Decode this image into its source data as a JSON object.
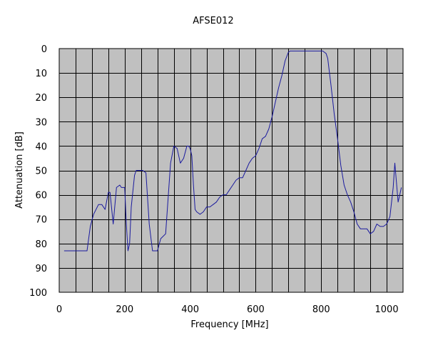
{
  "chart_data": {
    "type": "line",
    "title": "AFSE012",
    "xlabel": "Frequency [MHz]",
    "ylabel": "Attenuation [dB]",
    "xlim": [
      0,
      1050
    ],
    "ylim": [
      0,
      100
    ],
    "y_inverted": true,
    "xticks": [
      0,
      200,
      400,
      600,
      800,
      1000
    ],
    "yticks": [
      0,
      10,
      20,
      30,
      40,
      50,
      60,
      70,
      80,
      90,
      100
    ],
    "x_minor_step": 50,
    "grid": true,
    "legend": "none",
    "colors": {
      "plot_background": "#c0c0c0",
      "grid": "#000000",
      "line": "#1a1a9e"
    },
    "series": [
      {
        "x": [
          15,
          85,
          95,
          105,
          120,
          130,
          140,
          150,
          155,
          165,
          175,
          185,
          190,
          195,
          200,
          205,
          210,
          215,
          220,
          230,
          235,
          245,
          255,
          265,
          275,
          285,
          290,
          300,
          310,
          325,
          340,
          350,
          360,
          370,
          380,
          390,
          395,
          400,
          405,
          410,
          415,
          420,
          430,
          440,
          450,
          460,
          470,
          480,
          490,
          500,
          510,
          520,
          530,
          540,
          550,
          560,
          570,
          580,
          590,
          600,
          610,
          620,
          630,
          640,
          650,
          660,
          670,
          680,
          690,
          700,
          705,
          710,
          720,
          730,
          740,
          760,
          780,
          800,
          805,
          810,
          815,
          820,
          830,
          840,
          850,
          860,
          870,
          880,
          890,
          900,
          910,
          920,
          930,
          940,
          950,
          960,
          970,
          980,
          990,
          1000,
          1010,
          1020,
          1025,
          1030,
          1035,
          1040,
          1045
        ],
        "y": [
          83,
          83,
          73,
          68,
          64,
          64,
          66,
          59,
          59,
          72,
          57,
          56,
          57,
          57,
          57,
          72,
          83,
          80,
          65,
          52,
          50,
          50,
          50,
          51,
          72,
          83,
          83,
          83,
          78,
          76,
          47,
          40,
          41,
          47,
          45,
          40,
          40,
          41,
          44,
          56,
          66,
          67,
          68,
          67,
          65,
          65,
          64,
          63,
          61,
          60,
          60,
          58,
          56,
          54,
          53,
          53,
          50,
          47,
          45,
          44,
          41,
          37,
          36,
          33,
          28,
          22,
          16,
          11,
          5,
          1.5,
          1,
          1,
          1,
          1,
          1,
          1,
          1,
          1,
          1,
          1.5,
          2,
          4,
          15,
          27,
          37,
          48,
          56,
          60,
          63,
          67,
          72,
          74,
          74,
          74,
          76,
          75,
          72,
          73,
          73,
          72,
          69,
          57,
          47,
          55,
          63,
          60,
          57
        ]
      }
    ]
  }
}
